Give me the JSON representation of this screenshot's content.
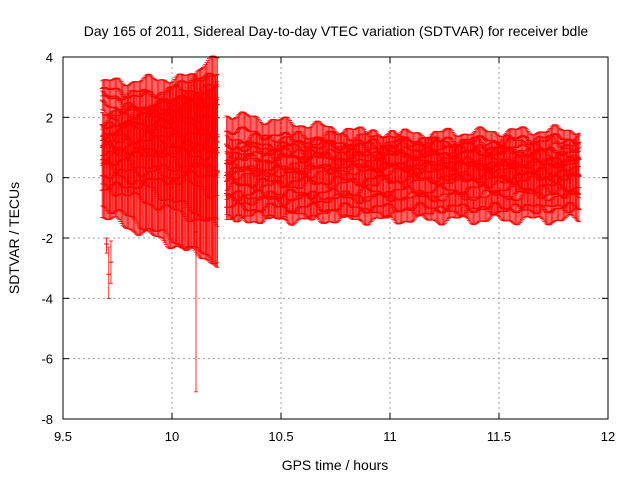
{
  "chart_data": {
    "type": "scatter",
    "title": "Day 165 of 2011, Sidereal Day-to-day VTEC variation (SDTVAR) for receiver bdle",
    "xlabel": "GPS time / hours",
    "ylabel": "SDTVAR / TECUs",
    "xlim": [
      9.5,
      12
    ],
    "ylim": [
      -8,
      4
    ],
    "xticks": [
      "9.5",
      "10",
      "10.5",
      "11",
      "11.5",
      "12"
    ],
    "yticks": [
      "-8",
      "-6",
      "-4",
      "-2",
      "0",
      "2",
      "4"
    ],
    "grid": true,
    "color": "#ff0000",
    "segments": [
      {
        "x_start": 9.68,
        "x_end": 10.21,
        "step": 0.0055,
        "tracks": [
          {
            "y0": 2.9,
            "y1": 2.4,
            "err0": 0.25,
            "err1": 1.0
          },
          {
            "y0": 2.4,
            "y1": 1.9,
            "err0": 0.3,
            "err1": 1.1
          },
          {
            "y0": 1.8,
            "y1": 1.4,
            "err0": 0.4,
            "err1": 1.3
          },
          {
            "y0": 1.4,
            "y1": 1.0,
            "err0": 0.5,
            "err1": 1.6
          },
          {
            "y0": 1.0,
            "y1": 0.7,
            "err0": 0.6,
            "err1": 2.2
          },
          {
            "y0": 0.5,
            "y1": 1.2,
            "err0": 0.8,
            "err1": 2.8
          },
          {
            "y0": 0.1,
            "y1": 0.4,
            "err0": 1.0,
            "err1": 3.2
          },
          {
            "y0": -0.4,
            "y1": 0.2,
            "err0": 0.9,
            "err1": 3.0
          }
        ]
      },
      {
        "x_start": 10.25,
        "x_end": 11.87,
        "step": 0.0055,
        "tracks": [
          {
            "y0": 1.0,
            "y1": 1.3,
            "err0": 0.3,
            "err1": 0.3
          },
          {
            "y0": 0.6,
            "y1": 0.9,
            "err0": 0.4,
            "err1": 0.4
          },
          {
            "y0": 0.2,
            "y1": 0.5,
            "err0": 0.5,
            "err1": 0.5
          },
          {
            "y0": -0.2,
            "y1": 0.1,
            "err0": 0.6,
            "err1": 0.6
          },
          {
            "y0": -0.6,
            "y1": -0.3,
            "err0": 0.7,
            "err1": 0.7
          },
          {
            "y0": 1.6,
            "y1": 0.0,
            "err0": 0.5,
            "err1": 0.6
          },
          {
            "y0": -1.0,
            "y1": -1.0,
            "err0": 0.4,
            "err1": 0.4
          }
        ]
      }
    ],
    "outliers": [
      {
        "x": 10.11,
        "y": -1.8,
        "err_low": -7.1,
        "err_high": 3.4
      },
      {
        "x": 9.71,
        "y": -3.2,
        "err_low": -4.0,
        "err_high": -2.3
      },
      {
        "x": 9.72,
        "y": -2.8,
        "err_low": -3.5,
        "err_high": -2.1
      },
      {
        "x": 9.7,
        "y": -2.2,
        "err_low": -2.5,
        "err_high": -2.0
      }
    ]
  }
}
